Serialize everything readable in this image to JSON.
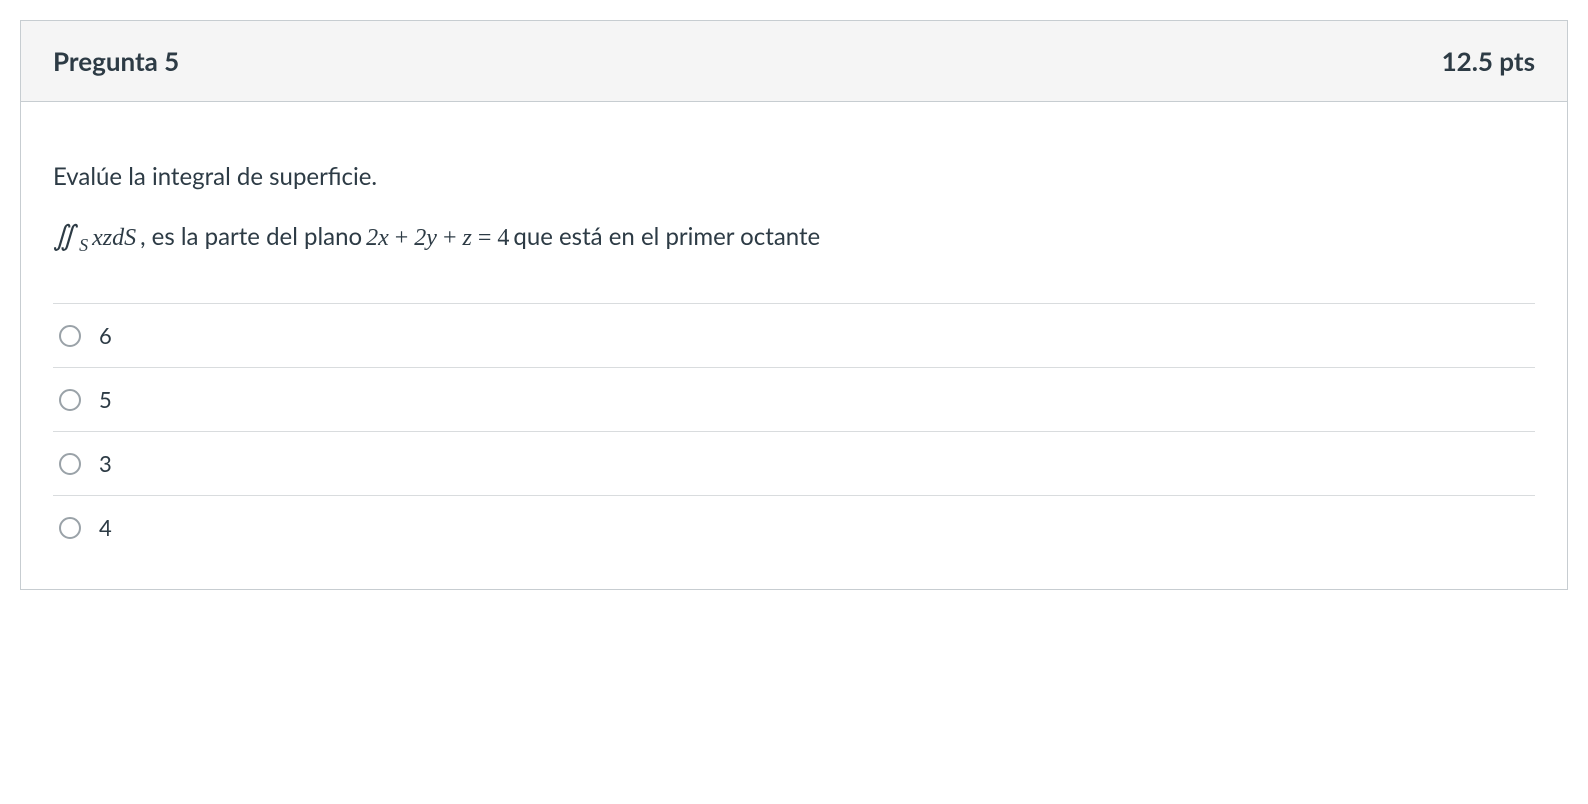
{
  "question": {
    "header_title": "Pregunta 5",
    "points": "12.5 pts",
    "prompt_line1": "Evalúe la integral de superficie.",
    "math": {
      "integral_symbols": "∬",
      "subscript": "S",
      "integrand": "xzdS",
      "plane_lhs_1": "2x",
      "plus1": " + ",
      "plane_lhs_2": "2y",
      "plus2": " + ",
      "plane_lhs_3": "z",
      "equals": " = ",
      "plane_rhs": "4"
    },
    "text_mid1": ", es la parte del plano ",
    "text_mid2": " que está en el primer octante",
    "options": [
      {
        "label": "6"
      },
      {
        "label": "5"
      },
      {
        "label": "3"
      },
      {
        "label": "4"
      }
    ]
  },
  "colors": {
    "border": "#c7cdd1",
    "header_bg": "#f5f5f5",
    "text": "#2d3b45",
    "divider": "#d9dcde",
    "radio_border": "#9aa2a8"
  }
}
